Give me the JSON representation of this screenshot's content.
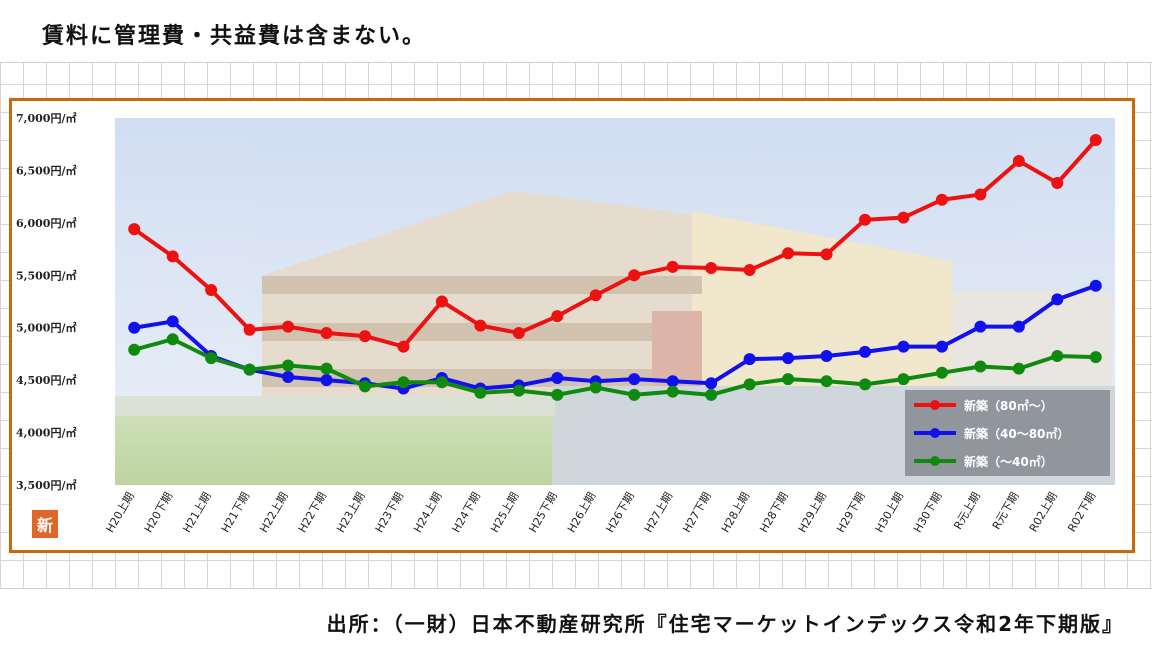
{
  "header": {
    "note": "賃料に管理費・共益費は含まない。"
  },
  "footer": {
    "source": "出所：（一財）日本不動産研究所『住宅マーケットインデックス令和2年下期版』"
  },
  "badge": {
    "label": "新"
  },
  "colors": {
    "frame": "#c8680f",
    "red_series": "#ee1111",
    "blue_series": "#1111ee",
    "green_series": "#0f8a0f",
    "badge": "#e0662a"
  },
  "chart_data": {
    "type": "line",
    "title": "",
    "xlabel": "",
    "ylabel": "",
    "ylim": [
      3500,
      7000
    ],
    "yticks": [
      3500,
      4000,
      4500,
      5000,
      5500,
      6000,
      6500,
      7000
    ],
    "ytick_labels": [
      "3,500円/㎡",
      "4,000円/㎡",
      "4,500円/㎡",
      "5,000円/㎡",
      "5,500円/㎡",
      "6,000円/㎡",
      "6,500円/㎡",
      "7,000円/㎡"
    ],
    "categories": [
      "H20上期",
      "H20下期",
      "H21上期",
      "H21下期",
      "H22上期",
      "H22下期",
      "H23上期",
      "H23下期",
      "H24上期",
      "H24下期",
      "H25上期",
      "H25下期",
      "H26上期",
      "H26下期",
      "H27上期",
      "H27下期",
      "H28上期",
      "H28下期",
      "H29上期",
      "H29下期",
      "H30上期",
      "H30下期",
      "R元上期",
      "R元下期",
      "R02上期",
      "R02下期"
    ],
    "legend_position": "bottom-right",
    "grid": false,
    "series": [
      {
        "name": "新築（80㎡〜）",
        "color": "#ee1111",
        "values": [
          5940,
          5680,
          5360,
          4980,
          5010,
          4950,
          4920,
          4820,
          5250,
          5020,
          4950,
          5110,
          5310,
          5500,
          5580,
          5570,
          5550,
          5710,
          5700,
          6030,
          6050,
          6220,
          6270,
          6590,
          6380,
          6790
        ]
      },
      {
        "name": "新築（40〜80㎡）",
        "color": "#1111ee",
        "values": [
          5000,
          5060,
          4730,
          4600,
          4530,
          4500,
          4470,
          4420,
          4520,
          4420,
          4450,
          4520,
          4490,
          4510,
          4490,
          4470,
          4700,
          4710,
          4730,
          4770,
          4820,
          4820,
          5010,
          5010,
          5270,
          5400
        ]
      },
      {
        "name": "新築（〜40㎡）",
        "color": "#0f8a0f",
        "values": [
          4790,
          4890,
          4710,
          4600,
          4640,
          4610,
          4440,
          4480,
          4480,
          4380,
          4400,
          4360,
          4430,
          4360,
          4390,
          4360,
          4460,
          4510,
          4490,
          4460,
          4510,
          4570,
          4630,
          4610,
          4730,
          4720
        ]
      }
    ]
  }
}
